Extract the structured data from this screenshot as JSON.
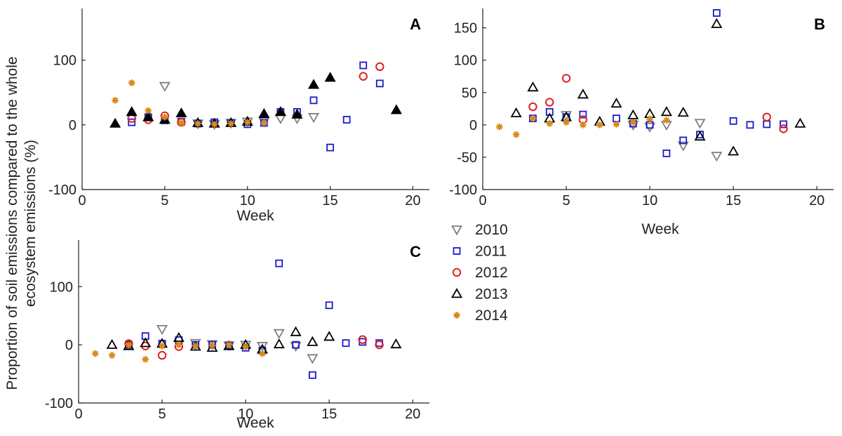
{
  "ylabel_line1": "Proportion of soil emissions compared to the whole",
  "ylabel_line2": "ecosystem emissions (%)",
  "series_styles": [
    {
      "year": "2010",
      "marker": "triangle-down",
      "color": "#808080",
      "filled": false
    },
    {
      "year": "2011",
      "marker": "square",
      "color": "#1a1acc",
      "filled": false
    },
    {
      "year": "2012",
      "marker": "circle",
      "color": "#e02020",
      "filled": false
    },
    {
      "year": "2013",
      "marker": "triangle-up",
      "color": "#000000",
      "filled": false
    },
    {
      "year": "2014",
      "marker": "asterisk",
      "color": "#d98a1a",
      "filled": true
    }
  ],
  "legend": {
    "items": [
      "2010",
      "2011",
      "2012",
      "2013",
      "2014"
    ]
  },
  "chart_data": [
    {
      "type": "scatter",
      "panel": "A",
      "xlabel": "Week",
      "ylabel": "Proportion of soil emissions compared to the whole ecosystem emissions (%)",
      "xlim": [
        0,
        21
      ],
      "ylim": [
        -100,
        180
      ],
      "xticks": [
        0,
        5,
        10,
        15,
        20
      ],
      "yticks": [
        -100,
        0,
        100
      ],
      "series": [
        {
          "name": "2010",
          "points": [
            [
              5,
              60
            ],
            [
              7,
              2
            ],
            [
              8,
              1
            ],
            [
              9,
              3
            ],
            [
              10,
              5
            ],
            [
              11,
              5
            ],
            [
              12,
              10
            ],
            [
              13,
              10
            ],
            [
              14,
              12
            ]
          ]
        },
        {
          "name": "2011",
          "points": [
            [
              3,
              4
            ],
            [
              4,
              12
            ],
            [
              5,
              7
            ],
            [
              6,
              5
            ],
            [
              7,
              2
            ],
            [
              8,
              4
            ],
            [
              9,
              3
            ],
            [
              10,
              1
            ],
            [
              11,
              3
            ],
            [
              12,
              20
            ],
            [
              13,
              20
            ],
            [
              14,
              38
            ],
            [
              15,
              -35
            ],
            [
              16,
              8
            ],
            [
              17,
              92
            ],
            [
              18,
              64
            ]
          ]
        },
        {
          "name": "2012",
          "points": [
            [
              3,
              10
            ],
            [
              4,
              8
            ],
            [
              5,
              14
            ],
            [
              6,
              4
            ],
            [
              17,
              75
            ],
            [
              18,
              90
            ]
          ]
        },
        {
          "name": "2013",
          "filled": true,
          "points": [
            [
              2,
              2
            ],
            [
              3,
              20
            ],
            [
              4,
              12
            ],
            [
              5,
              8
            ],
            [
              6,
              18
            ],
            [
              7,
              3
            ],
            [
              8,
              2
            ],
            [
              9,
              3
            ],
            [
              10,
              5
            ],
            [
              11,
              17
            ],
            [
              12,
              20
            ],
            [
              13,
              16
            ],
            [
              14,
              62
            ],
            [
              15,
              73
            ],
            [
              19,
              23
            ]
          ]
        },
        {
          "name": "2014",
          "points": [
            [
              2,
              38
            ],
            [
              3,
              65
            ],
            [
              4,
              22
            ],
            [
              5,
              12
            ],
            [
              6,
              3
            ],
            [
              7,
              2
            ],
            [
              8,
              1
            ],
            [
              9,
              2
            ],
            [
              10,
              4
            ],
            [
              11,
              3
            ]
          ]
        }
      ]
    },
    {
      "type": "scatter",
      "panel": "B",
      "xlabel": "Week",
      "ylabel": "",
      "xlim": [
        0,
        21
      ],
      "ylim": [
        -100,
        180
      ],
      "xticks": [
        0,
        5,
        10,
        15,
        20
      ],
      "yticks": [
        -100,
        -50,
        0,
        50,
        100,
        150
      ],
      "series": [
        {
          "name": "2010",
          "points": [
            [
              5,
              15
            ],
            [
              9,
              0
            ],
            [
              10,
              -3
            ],
            [
              11,
              0
            ],
            [
              12,
              -32
            ],
            [
              13,
              3
            ],
            [
              14,
              -48
            ]
          ]
        },
        {
          "name": "2011",
          "points": [
            [
              3,
              10
            ],
            [
              4,
              20
            ],
            [
              5,
              12
            ],
            [
              6,
              16
            ],
            [
              8,
              10
            ],
            [
              9,
              2
            ],
            [
              10,
              0
            ],
            [
              11,
              -44
            ],
            [
              12,
              -24
            ],
            [
              13,
              -15
            ],
            [
              14,
              173
            ],
            [
              15,
              6
            ],
            [
              16,
              0
            ],
            [
              17,
              1
            ],
            [
              18,
              1
            ]
          ]
        },
        {
          "name": "2012",
          "points": [
            [
              3,
              28
            ],
            [
              4,
              35
            ],
            [
              5,
              72
            ],
            [
              6,
              8
            ],
            [
              17,
              12
            ],
            [
              18,
              -6
            ]
          ]
        },
        {
          "name": "2013",
          "points": [
            [
              2,
              18
            ],
            [
              3,
              58
            ],
            [
              4,
              10
            ],
            [
              5,
              12
            ],
            [
              6,
              47
            ],
            [
              7,
              5
            ],
            [
              8,
              33
            ],
            [
              9,
              15
            ],
            [
              10,
              17
            ],
            [
              11,
              20
            ],
            [
              12,
              19
            ],
            [
              13,
              -18
            ],
            [
              14,
              156
            ],
            [
              15,
              -41
            ],
            [
              19,
              2
            ]
          ]
        },
        {
          "name": "2014",
          "points": [
            [
              1,
              -3
            ],
            [
              2,
              -15
            ],
            [
              3,
              10
            ],
            [
              4,
              2
            ],
            [
              5,
              4
            ],
            [
              6,
              0
            ],
            [
              7,
              0
            ],
            [
              8,
              1
            ],
            [
              9,
              4
            ],
            [
              10,
              9
            ],
            [
              11,
              7
            ]
          ]
        }
      ]
    },
    {
      "type": "scatter",
      "panel": "C",
      "xlabel": "Week",
      "ylabel": "",
      "xlim": [
        0,
        21
      ],
      "ylim": [
        -100,
        180
      ],
      "xticks": [
        0,
        5,
        10,
        15,
        20
      ],
      "yticks": [
        -100,
        0,
        100
      ],
      "series": [
        {
          "name": "2010",
          "points": [
            [
              5,
              27
            ],
            [
              7,
              3
            ],
            [
              8,
              1
            ],
            [
              9,
              -1
            ],
            [
              10,
              0
            ],
            [
              11,
              -2
            ],
            [
              12,
              20
            ],
            [
              13,
              -2
            ],
            [
              14,
              -23
            ]
          ]
        },
        {
          "name": "2011",
          "points": [
            [
              3,
              0
            ],
            [
              4,
              15
            ],
            [
              5,
              2
            ],
            [
              6,
              8
            ],
            [
              7,
              0
            ],
            [
              8,
              0
            ],
            [
              9,
              -1
            ],
            [
              10,
              -5
            ],
            [
              11,
              -10
            ],
            [
              12,
              140
            ],
            [
              13,
              0
            ],
            [
              14,
              -52
            ],
            [
              15,
              68
            ],
            [
              16,
              3
            ],
            [
              17,
              5
            ],
            [
              18,
              3
            ]
          ]
        },
        {
          "name": "2012",
          "points": [
            [
              3,
              2
            ],
            [
              4,
              -2
            ],
            [
              5,
              -18
            ],
            [
              6,
              -3
            ],
            [
              17,
              9
            ],
            [
              18,
              0
            ]
          ]
        },
        {
          "name": "2013",
          "points": [
            [
              2,
              0
            ],
            [
              3,
              -2
            ],
            [
              4,
              3
            ],
            [
              5,
              2
            ],
            [
              6,
              12
            ],
            [
              7,
              -3
            ],
            [
              8,
              -5
            ],
            [
              9,
              -2
            ],
            [
              10,
              0
            ],
            [
              11,
              -8
            ],
            [
              12,
              1
            ],
            [
              13,
              22
            ],
            [
              14,
              5
            ],
            [
              15,
              14
            ],
            [
              19,
              1
            ]
          ]
        },
        {
          "name": "2014",
          "points": [
            [
              1,
              -15
            ],
            [
              2,
              -18
            ],
            [
              3,
              0
            ],
            [
              4,
              -25
            ],
            [
              5,
              -2
            ],
            [
              6,
              0
            ],
            [
              7,
              -2
            ],
            [
              8,
              -1
            ],
            [
              9,
              0
            ],
            [
              10,
              -3
            ],
            [
              11,
              -15
            ]
          ]
        }
      ]
    }
  ]
}
